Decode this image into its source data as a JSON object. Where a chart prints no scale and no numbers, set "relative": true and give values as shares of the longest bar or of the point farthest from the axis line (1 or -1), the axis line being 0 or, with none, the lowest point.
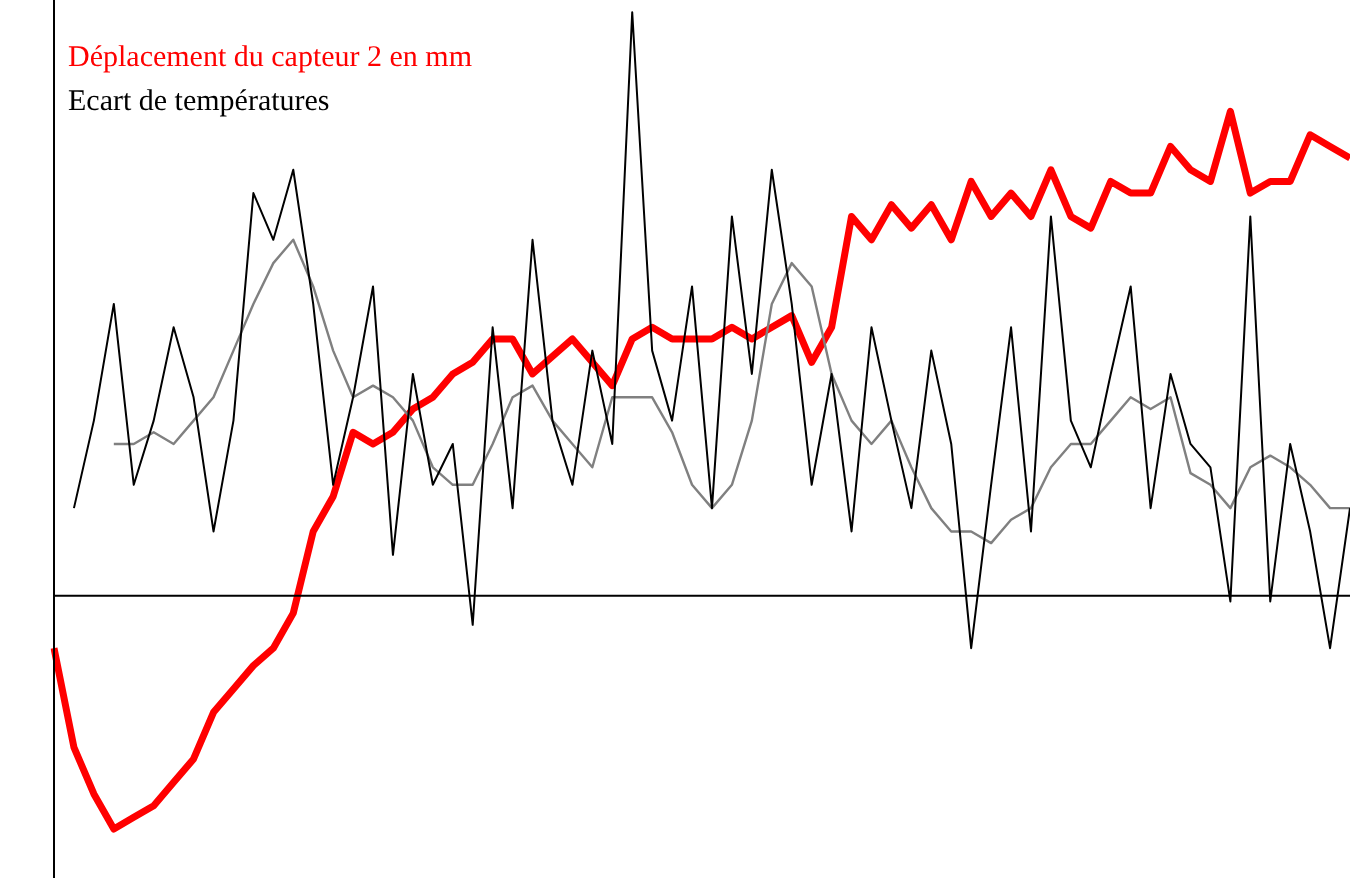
{
  "chart_data": {
    "type": "line",
    "relative": true,
    "legend": "top left",
    "marker": "none",
    "categories": [
      null,
      null,
      null,
      null,
      null,
      null,
      null,
      null,
      null,
      null,
      null,
      null,
      null,
      null,
      null,
      null,
      null,
      null,
      null,
      null,
      null,
      null,
      null,
      null,
      null,
      null,
      null,
      null,
      null,
      null,
      null,
      null,
      null,
      null,
      null,
      null,
      null,
      null,
      null,
      null,
      null,
      null,
      null,
      null,
      null,
      null,
      null,
      null,
      null,
      null,
      null,
      null,
      null,
      null,
      null,
      null,
      null,
      null,
      null,
      null,
      null,
      null,
      null,
      null,
      null,
      null
    ],
    "series": [
      {
        "name": "Ecart de températures",
        "color": "#000000",
        "values": [
          null,
          0.15,
          0.3,
          0.5,
          0.19,
          0.3,
          0.46,
          0.34,
          0.11,
          0.3,
          0.69,
          0.61,
          0.73,
          0.5,
          0.19,
          0.34,
          0.53,
          0.07,
          0.38,
          0.19,
          0.26,
          -0.05,
          0.46,
          0.15,
          0.61,
          0.3,
          0.19,
          0.42,
          0.26,
          1,
          0.42,
          0.3,
          0.53,
          0.15,
          0.65,
          0.38,
          0.73,
          0.5,
          0.19,
          0.38,
          0.11,
          0.46,
          0.3,
          0.15,
          0.42,
          0.26,
          -0.09,
          0.19,
          0.46,
          0.11,
          0.65,
          0.3,
          0.22,
          0.38,
          0.53,
          0.15,
          0.38,
          0.26,
          0.22,
          -0.01,
          0.65,
          -0.01,
          0.26,
          0.11,
          -0.09,
          0.15
        ]
      },
      {
        "color": "#808080",
        "values": [
          null,
          null,
          null,
          0.26,
          0.26,
          0.28,
          0.26,
          0.3,
          0.34,
          0.42,
          0.5,
          0.57,
          0.61,
          0.53,
          0.42,
          0.34,
          0.36,
          0.34,
          0.3,
          0.22,
          0.19,
          0.19,
          0.26,
          0.34,
          0.36,
          0.3,
          0.26,
          0.22,
          0.34,
          0.34,
          0.34,
          0.28,
          0.19,
          0.15,
          0.19,
          0.3,
          0.5,
          0.57,
          0.53,
          0.38,
          0.3,
          0.26,
          0.3,
          0.22,
          0.15,
          0.11,
          0.11,
          0.09,
          0.13,
          0.15,
          0.22,
          0.26,
          0.26,
          0.3,
          0.34,
          0.32,
          0.34,
          0.21,
          0.19,
          0.15,
          0.22,
          0.24,
          0.22,
          0.19,
          0.15,
          0.15
        ]
      },
      {
        "name": "Déplacement du capteur 2 en mm",
        "color": "#ff0000",
        "values": [
          -0.09,
          -0.26,
          -0.34,
          -0.4,
          -0.38,
          -0.36,
          -0.32,
          -0.28,
          -0.2,
          -0.16,
          -0.12,
          -0.09,
          -0.03,
          0.11,
          0.17,
          0.28,
          0.26,
          0.28,
          0.32,
          0.34,
          0.38,
          0.4,
          0.44,
          0.44,
          0.38,
          0.41,
          0.44,
          0.4,
          0.36,
          0.44,
          0.46,
          0.44,
          0.44,
          0.44,
          0.46,
          0.44,
          0.46,
          0.48,
          0.4,
          0.46,
          0.65,
          0.61,
          0.67,
          0.63,
          0.67,
          0.61,
          0.71,
          0.65,
          0.69,
          0.65,
          0.73,
          0.65,
          0.63,
          0.71,
          0.69,
          0.69,
          0.77,
          0.73,
          0.71,
          0.83,
          0.69,
          0.71,
          0.71,
          0.79,
          0.77,
          0.75
        ]
      }
    ]
  }
}
